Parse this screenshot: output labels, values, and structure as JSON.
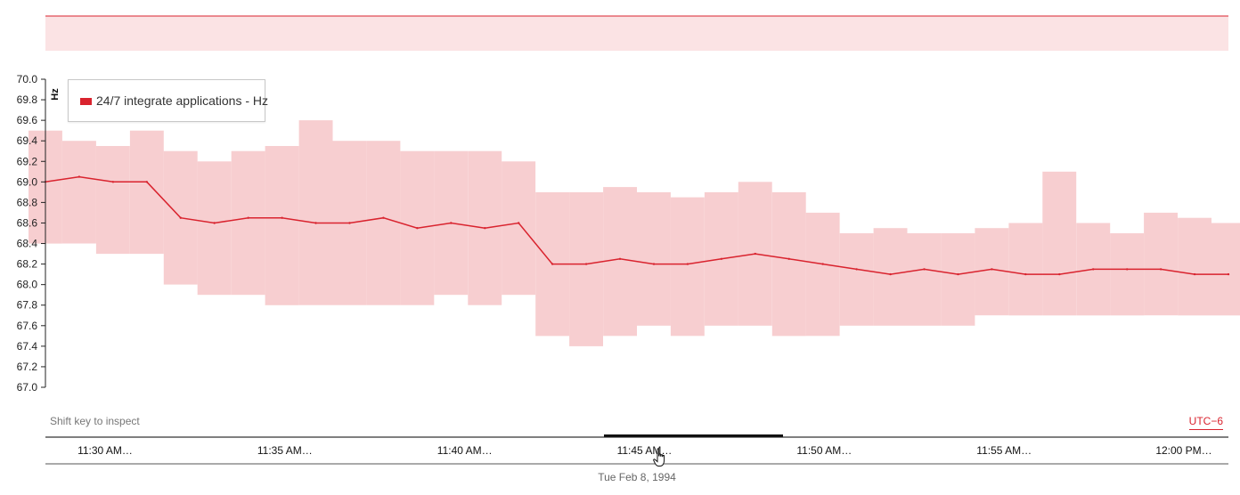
{
  "colors": {
    "accent": "#d9232e",
    "band_fill": "#fbe3e4",
    "range_fill": "#f6c6c8",
    "axis": "#222222"
  },
  "legend": {
    "label": "24/7 integrate applications - Hz"
  },
  "hint_text": "Shift key to inspect",
  "timezone_label": "UTC−6",
  "date_label": "Tue Feb 8, 1994",
  "time_ticks": [
    "11:30 AM…",
    "11:35 AM…",
    "11:40 AM…",
    "11:45 AM…",
    "11:50 AM…",
    "11:55 AM…",
    "12:00 PM…"
  ],
  "icons": {
    "cursor": "hand-pointer-icon"
  },
  "chart_data": {
    "type": "line",
    "ylabel": "Hz",
    "ylim": [
      67.0,
      70.0
    ],
    "y_ticks": [
      "67.0",
      "67.2",
      "67.4",
      "67.6",
      "67.8",
      "68.0",
      "68.2",
      "68.4",
      "68.6",
      "68.8",
      "69.0",
      "69.2",
      "69.4",
      "69.6",
      "69.8",
      "70.0"
    ],
    "x_start": "1994-02-08T11:27:00",
    "x_end": "1994-02-08T12:02:00",
    "grid": false,
    "legend_position": "top-left",
    "series": [
      {
        "name": "24/7 integrate applications - Hz",
        "x": [
          "11:27",
          "11:28",
          "11:29",
          "11:30",
          "11:31",
          "11:32",
          "11:33",
          "11:34",
          "11:35",
          "11:36",
          "11:37",
          "11:38",
          "11:39",
          "11:40",
          "11:41",
          "11:42",
          "11:43",
          "11:44",
          "11:45",
          "11:46",
          "11:47",
          "11:48",
          "11:49",
          "11:50",
          "11:51",
          "11:52",
          "11:53",
          "11:54",
          "11:55",
          "11:56",
          "11:57",
          "11:58",
          "11:59",
          "12:00",
          "12:01",
          "12:02"
        ],
        "mean": [
          69.0,
          69.05,
          69.0,
          69.0,
          68.65,
          68.6,
          68.65,
          68.65,
          68.6,
          68.6,
          68.65,
          68.55,
          68.6,
          68.55,
          68.6,
          68.2,
          68.2,
          68.25,
          68.2,
          68.2,
          68.25,
          68.3,
          68.25,
          68.2,
          68.15,
          68.1,
          68.15,
          68.1,
          68.15,
          68.1,
          68.1,
          68.15,
          68.15,
          68.15,
          68.1,
          68.1
        ],
        "high": [
          69.5,
          69.4,
          69.35,
          69.5,
          69.3,
          69.2,
          69.3,
          69.35,
          69.6,
          69.4,
          69.4,
          69.3,
          69.3,
          69.3,
          69.2,
          68.9,
          68.9,
          68.95,
          68.9,
          68.85,
          68.9,
          69.0,
          68.9,
          68.7,
          68.5,
          68.55,
          68.5,
          68.5,
          68.55,
          68.6,
          69.1,
          68.6,
          68.5,
          68.7,
          68.65,
          68.6
        ],
        "low": [
          68.4,
          68.4,
          68.3,
          68.3,
          68.0,
          67.9,
          67.9,
          67.8,
          67.8,
          67.8,
          67.8,
          67.8,
          67.9,
          67.8,
          67.9,
          67.5,
          67.4,
          67.5,
          67.6,
          67.5,
          67.6,
          67.6,
          67.5,
          67.5,
          67.6,
          67.6,
          67.6,
          67.6,
          67.7,
          67.7,
          67.7,
          67.7,
          67.7,
          67.7,
          67.7,
          67.7
        ]
      }
    ]
  }
}
